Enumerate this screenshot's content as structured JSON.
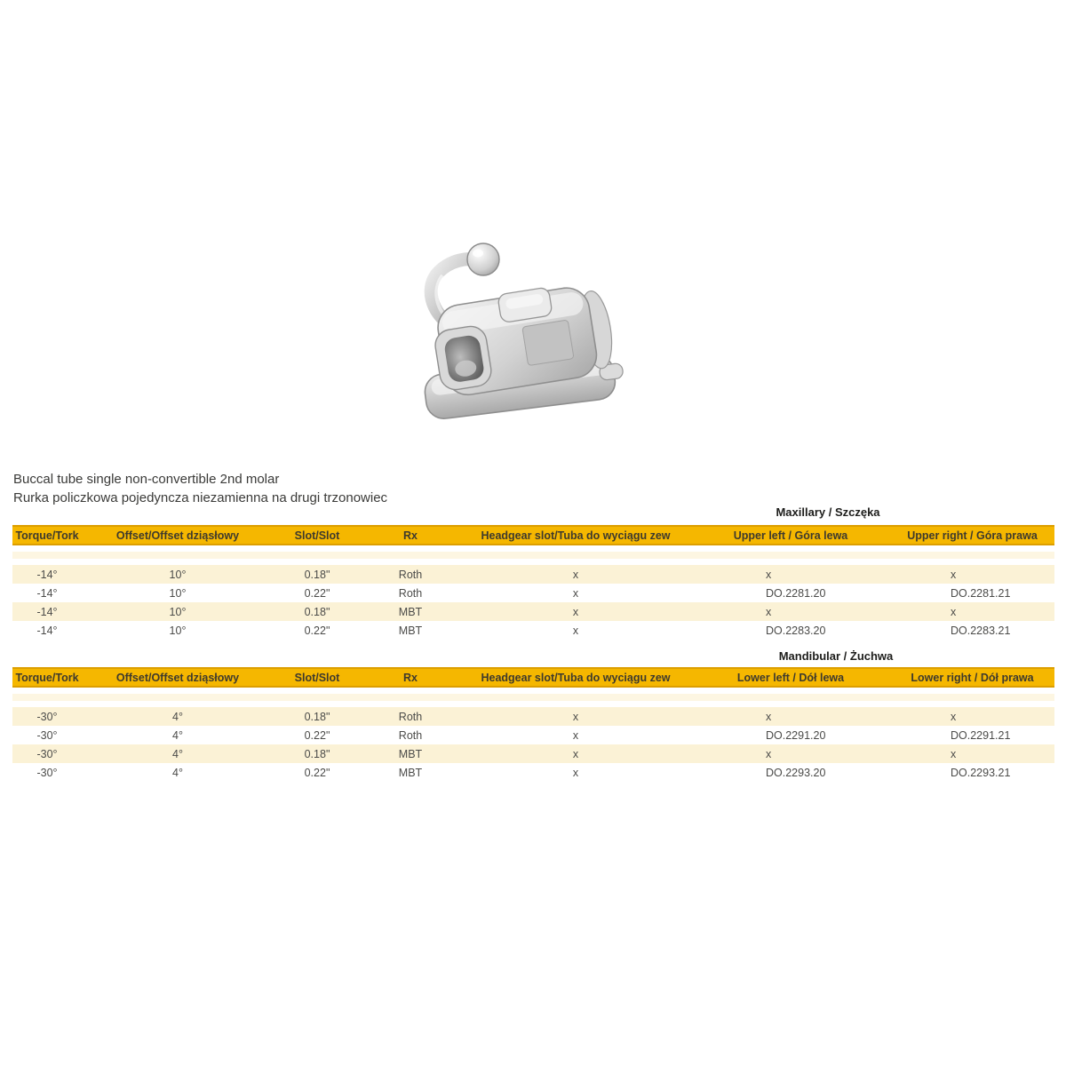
{
  "page": {
    "title_en": "Buccal tube single non-convertible 2nd molar",
    "title_pl": "Rurka policzkowa pojedyncza niezamienna na drugi trzonowiec"
  },
  "product_image": {
    "name": "buccal-tube-3d-render",
    "description": "Metallic buccal tube with ball hook on base pad"
  },
  "colors": {
    "header_yellow": "#F5B700",
    "header_yellow_edge": "#DC9E00",
    "row_cream": "#FBF2D6",
    "spacer_cream": "#FDF6E2",
    "text_dark": "#3e3a2d",
    "text_data": "#4b4b49"
  },
  "tables": [
    {
      "section_title": "Maxillary / Szczęka",
      "columns": [
        "Torque/Tork",
        "Offset/Offset dziąsłowy",
        "Slot/Slot",
        "Rx",
        "Headgear slot/Tuba do wyciągu zew",
        "Upper left / Góra lewa",
        "Upper right / Góra prawa"
      ],
      "rows": [
        [
          "-14°",
          "10°",
          "0.18\"",
          "Roth",
          "x",
          "x",
          "x"
        ],
        [
          "-14°",
          "10°",
          "0.22\"",
          "Roth",
          "x",
          "DO.2281.20",
          "DO.2281.21"
        ],
        [
          "-14°",
          "10°",
          "0.18\"",
          "MBT",
          "x",
          "x",
          "x"
        ],
        [
          "-14°",
          "10°",
          "0.22\"",
          "MBT",
          "x",
          "DO.2283.20",
          "DO.2283.21"
        ]
      ]
    },
    {
      "section_title": "Mandibular / Żuchwa",
      "columns": [
        "Torque/Tork",
        "Offset/Offset dziąsłowy",
        "Slot/Slot",
        "Rx",
        "Headgear slot/Tuba do wyciągu zew",
        "Lower left / Dół lewa",
        "Lower right / Dół prawa"
      ],
      "rows": [
        [
          "-30°",
          "4°",
          "0.18\"",
          "Roth",
          "x",
          "x",
          "x"
        ],
        [
          "-30°",
          "4°",
          "0.22\"",
          "Roth",
          "x",
          "DO.2291.20",
          "DO.2291.21"
        ],
        [
          "-30°",
          "4°",
          "0.18\"",
          "MBT",
          "x",
          "x",
          "x"
        ],
        [
          "-30°",
          "4°",
          "0.22\"",
          "MBT",
          "x",
          "DO.2293.20",
          "DO.2293.21"
        ]
      ]
    }
  ]
}
